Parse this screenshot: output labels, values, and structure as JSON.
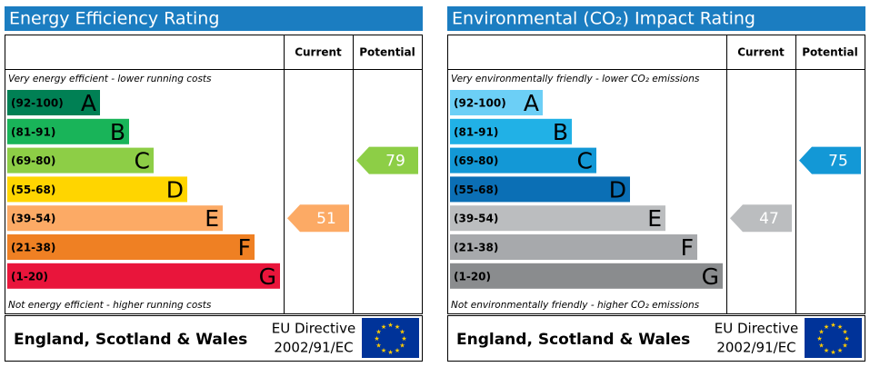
{
  "panels": [
    {
      "title": "Energy Efficiency Rating",
      "col_current": "Current",
      "col_potential": "Potential",
      "top_note": "Very energy efficient - lower running costs",
      "bottom_note": "Not energy efficient - higher running costs",
      "bands": [
        {
          "range": "(92-100)",
          "letter": "A",
          "color": "#008054"
        },
        {
          "range": "(81-91)",
          "letter": "B",
          "color": "#19b459"
        },
        {
          "range": "(69-80)",
          "letter": "C",
          "color": "#8dce46"
        },
        {
          "range": "(55-68)",
          "letter": "D",
          "color": "#ffd500"
        },
        {
          "range": "(39-54)",
          "letter": "E",
          "color": "#fcaa65"
        },
        {
          "range": "(21-38)",
          "letter": "F",
          "color": "#ef8023"
        },
        {
          "range": "(1-20)",
          "letter": "G",
          "color": "#e9153b"
        }
      ],
      "current": 51,
      "potential": 79,
      "footer_region": "England, Scotland & Wales",
      "footer_directive": "EU Directive",
      "footer_code": "2002/91/EC"
    },
    {
      "title": "Environmental (CO₂) Impact Rating",
      "col_current": "Current",
      "col_potential": "Potential",
      "top_note": "Very environmentally friendly - lower CO₂ emissions",
      "bottom_note": "Not environmentally friendly - higher CO₂ emissions",
      "bands": [
        {
          "range": "(92-100)",
          "letter": "A",
          "color": "#6ccff6"
        },
        {
          "range": "(81-91)",
          "letter": "B",
          "color": "#21b1e6"
        },
        {
          "range": "(69-80)",
          "letter": "C",
          "color": "#1398d6"
        },
        {
          "range": "(55-68)",
          "letter": "D",
          "color": "#0b6fb5"
        },
        {
          "range": "(39-54)",
          "letter": "E",
          "color": "#bbbdbf"
        },
        {
          "range": "(21-38)",
          "letter": "F",
          "color": "#a7a9ac"
        },
        {
          "range": "(1-20)",
          "letter": "G",
          "color": "#8a8c8e"
        }
      ],
      "current": 47,
      "potential": 75,
      "footer_region": "England, Scotland & Wales",
      "footer_directive": "EU Directive",
      "footer_code": "2002/91/EC"
    }
  ]
}
